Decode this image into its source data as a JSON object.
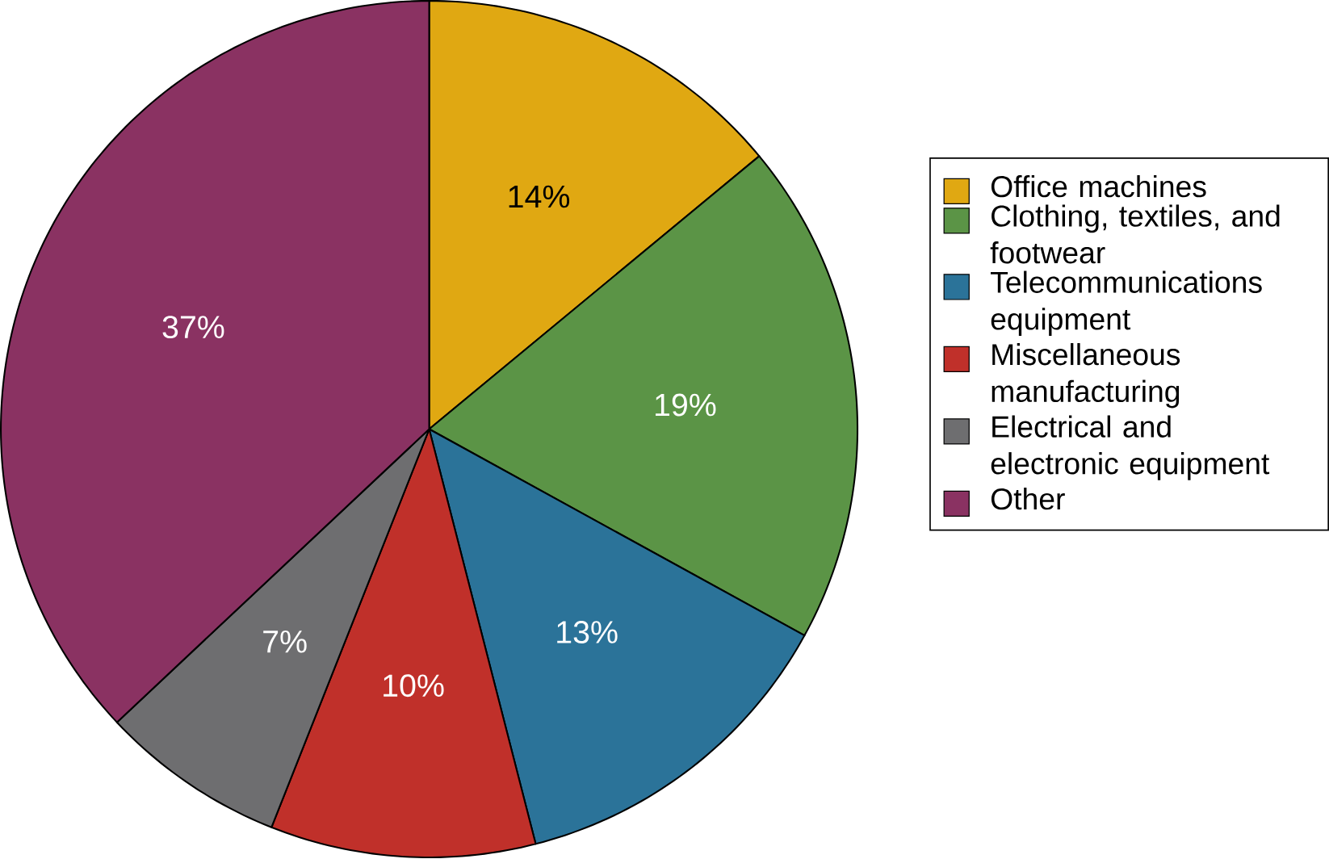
{
  "chart_data": {
    "type": "pie",
    "categories": [
      "Office machines",
      "Clothing, textiles, and footwear",
      "Telecommunications equipment",
      "Miscellaneous manufacturing",
      "Electrical and electronic equipment",
      "Other"
    ],
    "values": [
      14,
      19,
      13,
      10,
      7,
      37
    ],
    "value_labels": [
      "14%",
      "19%",
      "13%",
      "10%",
      "7%",
      "37%"
    ],
    "colors": [
      "#e0a812",
      "#5b9446",
      "#2b7399",
      "#c0302a",
      "#6e6e70",
      "#8a3262"
    ],
    "legend": "right"
  }
}
